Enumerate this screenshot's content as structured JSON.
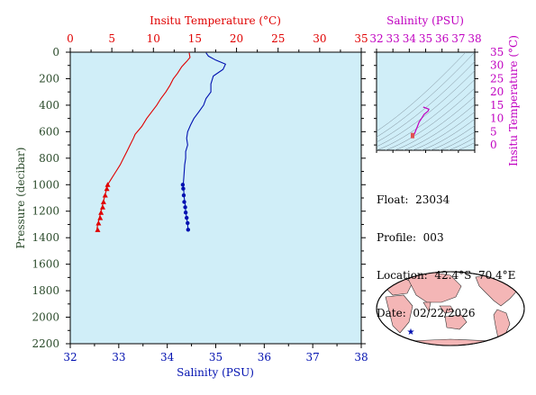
{
  "colors": {
    "plot_bg": "#d0eef8",
    "temperature": "#e00000",
    "salinity": "#0010b0",
    "pressure_axis": "#2a4a2a",
    "ts_axis": "#c000c0",
    "land": "#f4b6b6",
    "ocean": "#ffffff",
    "float_marker": "#0010b0"
  },
  "info": {
    "float_label": "Float:",
    "float_value": "23034",
    "profile_label": "Profile:",
    "profile_value": "003",
    "location_label": "Location:",
    "location_value": "42.4°S  70.4°E",
    "date_label": "Date:",
    "date_value": "02/22/2026"
  },
  "map": {
    "marker_icon": "star-icon"
  },
  "chart_data": [
    {
      "type": "line",
      "x_top_label": "Insitu Temperature (°C)",
      "x_bottom_label": "Salinity (PSU)",
      "ylabel": "Pressure (decibar)",
      "temperature_lim": [
        0,
        35
      ],
      "temperature_ticks": [
        "0",
        "5",
        "10",
        "15",
        "20",
        "25",
        "30",
        "35"
      ],
      "salinity_lim": [
        32,
        38
      ],
      "salinity_ticks": [
        "32",
        "33",
        "34",
        "35",
        "36",
        "37",
        "38"
      ],
      "pressure_lim": [
        0,
        2200
      ],
      "pressure_ticks": [
        "0",
        "200",
        "400",
        "600",
        "800",
        "1000",
        "1200",
        "1400",
        "1600",
        "1800",
        "2000",
        "2200"
      ],
      "grid": false,
      "series": [
        {
          "name": "",
          "key": "temperature",
          "axis": "top",
          "marker": "triangle",
          "points": [
            [
              14.3,
              5
            ],
            [
              14.4,
              40
            ],
            [
              14.0,
              70
            ],
            [
              13.4,
              110
            ],
            [
              12.9,
              160
            ],
            [
              12.4,
              200
            ],
            [
              12.0,
              250
            ],
            [
              11.5,
              300
            ],
            [
              10.9,
              350
            ],
            [
              10.4,
              400
            ],
            [
              9.8,
              450
            ],
            [
              9.2,
              500
            ],
            [
              8.6,
              560
            ],
            [
              7.8,
              620
            ],
            [
              7.6,
              650
            ],
            [
              7.2,
              700
            ],
            [
              6.8,
              750
            ],
            [
              6.4,
              800
            ],
            [
              6.0,
              850
            ],
            [
              5.5,
              900
            ],
            [
              5.0,
              950
            ],
            [
              4.5,
              1000
            ],
            [
              4.3,
              1050
            ],
            [
              4.1,
              1100
            ],
            [
              3.9,
              1150
            ],
            [
              3.7,
              1200
            ],
            [
              3.5,
              1250
            ],
            [
              3.3,
              1300
            ],
            [
              3.2,
              1340
            ]
          ],
          "markers": [
            [
              4.5,
              1000
            ],
            [
              4.4,
              1030
            ],
            [
              4.2,
              1080
            ],
            [
              4.0,
              1130
            ],
            [
              3.9,
              1170
            ],
            [
              3.7,
              1210
            ],
            [
              3.6,
              1250
            ],
            [
              3.4,
              1290
            ],
            [
              3.3,
              1340
            ]
          ]
        },
        {
          "name": "",
          "key": "salinity",
          "axis": "bottom",
          "marker": "circle",
          "points": [
            [
              34.8,
              5
            ],
            [
              34.85,
              30
            ],
            [
              35.0,
              60
            ],
            [
              35.2,
              90
            ],
            [
              35.15,
              130
            ],
            [
              34.95,
              180
            ],
            [
              34.9,
              240
            ],
            [
              34.9,
              300
            ],
            [
              34.8,
              350
            ],
            [
              34.75,
              400
            ],
            [
              34.65,
              450
            ],
            [
              34.55,
              500
            ],
            [
              34.48,
              550
            ],
            [
              34.42,
              600
            ],
            [
              34.4,
              650
            ],
            [
              34.42,
              700
            ],
            [
              34.38,
              750
            ],
            [
              34.38,
              800
            ],
            [
              34.36,
              850
            ],
            [
              34.35,
              900
            ],
            [
              34.34,
              950
            ],
            [
              34.33,
              1000
            ],
            [
              34.34,
              1050
            ],
            [
              34.35,
              1100
            ],
            [
              34.37,
              1150
            ],
            [
              34.38,
              1200
            ],
            [
              34.4,
              1250
            ],
            [
              34.42,
              1300
            ],
            [
              34.43,
              1340
            ]
          ],
          "markers": [
            [
              34.32,
              1000
            ],
            [
              34.33,
              1030
            ],
            [
              34.34,
              1080
            ],
            [
              34.35,
              1130
            ],
            [
              34.37,
              1170
            ],
            [
              34.38,
              1210
            ],
            [
              34.4,
              1250
            ],
            [
              34.42,
              1290
            ],
            [
              34.43,
              1340
            ]
          ]
        }
      ]
    },
    {
      "type": "line",
      "x_label": "Salinity (PSU)",
      "y_label": "Insitu Temperature (°C)",
      "xlim": [
        32,
        38
      ],
      "x_ticks": [
        "32",
        "33",
        "34",
        "35",
        "36",
        "37",
        "38"
      ],
      "ylim": [
        -2,
        35
      ],
      "y_ticks": [
        "0",
        "5",
        "10",
        "15",
        "20",
        "25",
        "30",
        "35"
      ],
      "series": [
        {
          "name": "",
          "points": [
            [
              34.2,
              3.2
            ],
            [
              34.3,
              4.0
            ],
            [
              34.4,
              5.5
            ],
            [
              34.5,
              7.0
            ],
            [
              34.6,
              8.6
            ],
            [
              34.75,
              10.0
            ],
            [
              34.9,
              11.5
            ],
            [
              35.15,
              12.8
            ],
            [
              35.2,
              13.5
            ],
            [
              34.85,
              14.3
            ]
          ]
        }
      ]
    }
  ]
}
